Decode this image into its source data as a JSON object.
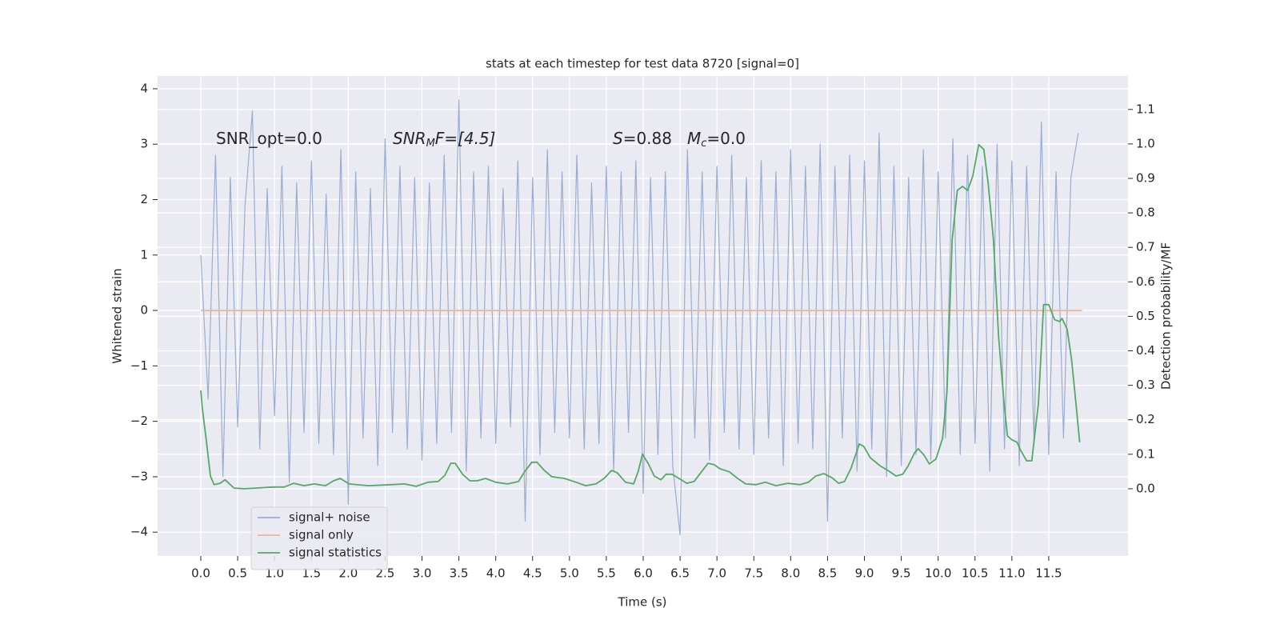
{
  "chart_data": {
    "type": "line",
    "title": "stats at each timestep for test data 8720 [signal=0]",
    "x_label": "Time (s)",
    "y_label": "Whitened strain",
    "y2_label": "Detection probability/MF",
    "annotations": [
      [
        "SNR_opt=0.0"
      ],
      [
        "SNR",
        "M",
        "F=[4.5]"
      ],
      [
        "S",
        "=0.88"
      ],
      [
        "M",
        "c",
        "=0.0"
      ]
    ],
    "xlim": [
      -0.586,
      12.575
    ],
    "xticks": [
      {
        "value": 0,
        "label": "0.0"
      },
      0.5,
      {
        "value": 1,
        "label": "1.0"
      },
      1.5,
      {
        "value": 2,
        "label": "2.0"
      },
      2.5,
      {
        "value": 3,
        "label": "3.0"
      },
      3.5,
      {
        "value": 4,
        "label": "4.0"
      },
      4.5,
      {
        "value": 5,
        "label": "5.0"
      },
      5.5,
      {
        "value": 6,
        "label": "6.0"
      },
      6.5,
      {
        "value": 7,
        "label": "7.0"
      },
      7.5,
      {
        "value": 8,
        "label": "8.0"
      },
      8.5,
      {
        "value": 9,
        "label": "9.0"
      },
      9.5,
      {
        "value": 10,
        "label": "10.0"
      },
      10.5,
      {
        "value": 11,
        "label": "11.0"
      },
      11.5
    ],
    "ylim": [
      -4.43,
      4.23
    ],
    "yticks": [
      {
        "value": -4,
        "label": "−4"
      },
      {
        "value": -3,
        "label": "−3"
      },
      {
        "value": -2,
        "label": "−2"
      },
      {
        "value": -1,
        "label": "−1"
      },
      0,
      1,
      2,
      3,
      4
    ],
    "y2lim": [
      -0.195,
      1.197
    ],
    "y2ticks": [
      {
        "value": 0,
        "label": "0.0"
      },
      0.1,
      0.2,
      0.3,
      0.4,
      0.5,
      0.6,
      0.7,
      0.8,
      0.9,
      {
        "value": 1,
        "label": "1.0"
      },
      1.1
    ],
    "grid": true,
    "legend": "lower left",
    "series": [
      {
        "name": "signal+ noise",
        "color": "#9badd2",
        "x": [
          0,
          0.1,
          0.2,
          0.3,
          0.4,
          0.5,
          0.6,
          0.7,
          0.8,
          0.9,
          1,
          1.1,
          1.2,
          1.3,
          1.4,
          1.5,
          1.6,
          1.7,
          1.8,
          1.9,
          2,
          2.1,
          2.2,
          2.3,
          2.4,
          2.5,
          2.6,
          2.7,
          2.8,
          2.9,
          3,
          3.1,
          3.2,
          3.3,
          3.4,
          3.5,
          3.6,
          3.7,
          3.8,
          3.9,
          4,
          4.1,
          4.2,
          4.3,
          4.4,
          4.5,
          4.6,
          4.7,
          4.8,
          4.9,
          5,
          5.1,
          5.2,
          5.3,
          5.4,
          5.5,
          5.6,
          5.7,
          5.8,
          5.9,
          6,
          6.1,
          6.2,
          6.3,
          6.4,
          6.5,
          6.6,
          6.7,
          6.8,
          6.9,
          7,
          7.1,
          7.2,
          7.3,
          7.4,
          7.5,
          7.6,
          7.7,
          7.8,
          7.9,
          8,
          8.1,
          8.2,
          8.3,
          8.4,
          8.5,
          8.6,
          8.7,
          8.8,
          8.9,
          9,
          9.1,
          9.2,
          9.3,
          9.4,
          9.5,
          9.6,
          9.7,
          9.8,
          9.9,
          10,
          10.1,
          10.2,
          10.3,
          10.4,
          10.5,
          10.6,
          10.7,
          10.8,
          10.9,
          11,
          11.1,
          11.2,
          11.3,
          11.4,
          11.5,
          11.6,
          11.7,
          11.8,
          11.9
        ],
        "values": [
          1.0,
          -1.6,
          2.8,
          -3.0,
          2.4,
          -2.1,
          1.9,
          3.6,
          -2.5,
          2.2,
          -1.9,
          2.6,
          -3.1,
          2.3,
          -2.2,
          2.7,
          -2.4,
          2.1,
          -2.6,
          2.9,
          -3.5,
          2.5,
          -2.3,
          2.2,
          -2.8,
          3.1,
          -2.2,
          2.6,
          -2.5,
          2.4,
          -2.7,
          2.3,
          -2.4,
          2.8,
          -2.2,
          3.8,
          -2.9,
          2.5,
          -2.3,
          2.6,
          -2.4,
          2.2,
          -2.1,
          2.7,
          -3.8,
          2.4,
          -2.6,
          2.9,
          -2.2,
          2.5,
          -2.3,
          2.8,
          -2.5,
          2.3,
          -2.4,
          2.6,
          -2.9,
          2.5,
          -2.2,
          2.7,
          -3.3,
          2.4,
          -2.6,
          2.5,
          -2.8,
          -4.05,
          2.9,
          -2.3,
          2.5,
          -2.7,
          2.6,
          -2.2,
          2.8,
          -2.5,
          2.4,
          -2.6,
          2.7,
          -2.3,
          2.5,
          -2.8,
          2.9,
          -2.4,
          2.6,
          -2.5,
          3.0,
          -3.8,
          2.6,
          -2.3,
          2.8,
          -2.9,
          2.7,
          -2.5,
          3.2,
          -3.0,
          2.6,
          -2.8,
          2.4,
          -2.6,
          2.9,
          -2.7,
          2.5,
          -2.3,
          3.1,
          -2.6,
          2.8,
          -2.4,
          2.6,
          -2.9,
          3.0,
          -2.5,
          2.7,
          -2.8,
          2.6,
          -2.4,
          3.4,
          -2.6,
          2.5,
          -2.3,
          2.4,
          3.2
        ]
      },
      {
        "name": "signal only",
        "color": "#e8b59a",
        "x": [
          0,
          11.95
        ],
        "values": [
          0,
          0
        ]
      },
      {
        "name": "signal statistics",
        "color": "#55a868",
        "axis": "y2",
        "x": [
          0,
          0.02,
          0.075,
          0.13,
          0.18,
          0.26,
          0.33,
          0.45,
          0.59,
          0.75,
          0.97,
          1.13,
          1.26,
          1.4,
          1.54,
          1.69,
          1.8,
          1.89,
          2.01,
          2.27,
          2.59,
          2.76,
          2.92,
          3.08,
          3.22,
          3.31,
          3.39,
          3.45,
          3.55,
          3.65,
          3.75,
          3.86,
          4.0,
          4.16,
          4.31,
          4.39,
          4.49,
          4.56,
          4.66,
          4.76,
          4.93,
          5.09,
          5.22,
          5.36,
          5.47,
          5.57,
          5.65,
          5.76,
          5.87,
          5.93,
          5.99,
          6.07,
          6.15,
          6.24,
          6.31,
          6.39,
          6.5,
          6.59,
          6.69,
          6.79,
          6.88,
          6.96,
          7.04,
          7.17,
          7.28,
          7.39,
          7.53,
          7.66,
          7.8,
          7.96,
          8.13,
          8.24,
          8.34,
          8.45,
          8.56,
          8.65,
          8.73,
          8.82,
          8.93,
          8.99,
          9.08,
          9.21,
          9.32,
          9.43,
          9.52,
          9.59,
          9.68,
          9.73,
          9.81,
          9.88,
          9.97,
          10.06,
          10.12,
          10.19,
          10.26,
          10.33,
          10.4,
          10.47,
          10.55,
          10.62,
          10.68,
          10.75,
          10.82,
          10.89,
          10.94,
          11.0,
          11.07,
          11.12,
          11.2,
          11.27,
          11.36,
          11.43,
          11.5,
          11.58,
          11.65,
          11.68,
          11.75,
          11.81,
          11.87,
          11.92
        ],
        "values": [
          0.285,
          0.234,
          0.14,
          0.037,
          0.012,
          0.016,
          0.026,
          0.002,
          0.0,
          0.002,
          0.005,
          0.005,
          0.016,
          0.009,
          0.014,
          0.009,
          0.023,
          0.03,
          0.014,
          0.009,
          0.012,
          0.014,
          0.007,
          0.019,
          0.021,
          0.039,
          0.074,
          0.074,
          0.042,
          0.023,
          0.023,
          0.03,
          0.019,
          0.014,
          0.021,
          0.049,
          0.077,
          0.077,
          0.053,
          0.035,
          0.03,
          0.019,
          0.009,
          0.014,
          0.03,
          0.053,
          0.046,
          0.019,
          0.014,
          0.049,
          0.1,
          0.072,
          0.037,
          0.026,
          0.042,
          0.042,
          0.028,
          0.016,
          0.021,
          0.049,
          0.074,
          0.07,
          0.058,
          0.049,
          0.03,
          0.014,
          0.012,
          0.019,
          0.009,
          0.016,
          0.012,
          0.019,
          0.037,
          0.044,
          0.032,
          0.016,
          0.021,
          0.06,
          0.13,
          0.123,
          0.09,
          0.067,
          0.053,
          0.037,
          0.042,
          0.065,
          0.104,
          0.116,
          0.097,
          0.072,
          0.086,
          0.146,
          0.281,
          0.722,
          0.865,
          0.877,
          0.865,
          0.907,
          0.998,
          0.984,
          0.884,
          0.722,
          0.443,
          0.258,
          0.153,
          0.142,
          0.135,
          0.111,
          0.081,
          0.081,
          0.246,
          0.534,
          0.534,
          0.49,
          0.485,
          0.494,
          0.462,
          0.374,
          0.246,
          0.135
        ]
      }
    ]
  }
}
